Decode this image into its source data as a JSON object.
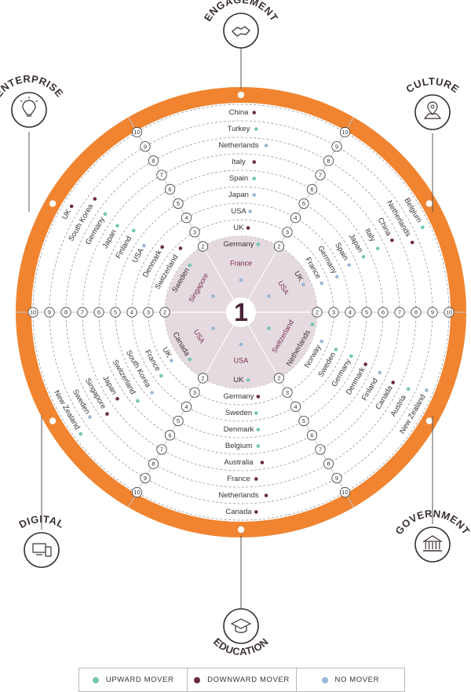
{
  "center_rank": "1",
  "rank_labels": [
    "2",
    "3",
    "4",
    "5",
    "6",
    "7",
    "8",
    "9",
    "10"
  ],
  "colors": {
    "ring": "#f08430",
    "hub": "#e4dadf",
    "upward": "#73c6b5",
    "downward": "#6b2b45",
    "none": "#9bb6d6"
  },
  "categories": [
    {
      "key": "engagement",
      "label": "ENGAGEMENT",
      "icon": "handshake-icon"
    },
    {
      "key": "culture",
      "label": "CULTURE",
      "icon": "map-pin-icon"
    },
    {
      "key": "government",
      "label": "GOVERNMENT",
      "icon": "bank-icon"
    },
    {
      "key": "education",
      "label": "EDUCATION",
      "icon": "graduation-cap-icon"
    },
    {
      "key": "digital",
      "label": "DIGITAL",
      "icon": "devices-icon"
    },
    {
      "key": "enterprise",
      "label": "ENTERPRISE",
      "icon": "lightbulb-icon"
    }
  ],
  "sectors": [
    {
      "key": "engagement",
      "hub": "France",
      "hub_mover": "none",
      "entries": [
        {
          "c": "Germany",
          "m": "up"
        },
        {
          "c": "UK",
          "m": "down"
        },
        {
          "c": "USA",
          "m": "none"
        },
        {
          "c": "Japan",
          "m": "none"
        },
        {
          "c": "Spain",
          "m": "up"
        },
        {
          "c": "Italy",
          "m": "down"
        },
        {
          "c": "Netherlands",
          "m": "none"
        },
        {
          "c": "Turkey",
          "m": "up"
        },
        {
          "c": "China",
          "m": "down"
        }
      ]
    },
    {
      "key": "culture",
      "hub": "USA",
      "hub_mover": "none",
      "entries": [
        {
          "c": "UK",
          "m": "none"
        },
        {
          "c": "France",
          "m": "none"
        },
        {
          "c": "Germany",
          "m": "none"
        },
        {
          "c": "Spain",
          "m": "none"
        },
        {
          "c": "Japan",
          "m": "up"
        },
        {
          "c": "Italy",
          "m": "up"
        },
        {
          "c": "China",
          "m": "down"
        },
        {
          "c": "Netherlands",
          "m": "down"
        },
        {
          "c": "Belgium",
          "m": "up"
        }
      ]
    },
    {
      "key": "government",
      "hub": "Switzerland",
      "hub_mover": "up",
      "entries": [
        {
          "c": "Netherlands",
          "m": "up"
        },
        {
          "c": "Norway",
          "m": "none"
        },
        {
          "c": "Sweden",
          "m": "up"
        },
        {
          "c": "Germany",
          "m": "up"
        },
        {
          "c": "Denmark",
          "m": "down"
        },
        {
          "c": "Finland",
          "m": "none"
        },
        {
          "c": "Canada",
          "m": "down"
        },
        {
          "c": "Austria",
          "m": "up"
        },
        {
          "c": "New Zealand",
          "m": "none"
        }
      ]
    },
    {
      "key": "education",
      "hub": "USA",
      "hub_mover": "none",
      "entries": [
        {
          "c": "UK",
          "m": "up"
        },
        {
          "c": "Germany",
          "m": "down"
        },
        {
          "c": "Sweden",
          "m": "up"
        },
        {
          "c": "Denmark",
          "m": "up"
        },
        {
          "c": "Belgium",
          "m": "up"
        },
        {
          "c": "Australia",
          "m": "down"
        },
        {
          "c": "France",
          "m": "down"
        },
        {
          "c": "Netherlands",
          "m": "down"
        },
        {
          "c": "Canada",
          "m": "down"
        }
      ]
    },
    {
      "key": "digital",
      "hub": "USA",
      "hub_mover": "none",
      "entries": [
        {
          "c": "Canada",
          "m": "up"
        },
        {
          "c": "UK",
          "m": "none"
        },
        {
          "c": "France",
          "m": "up"
        },
        {
          "c": "South Korea",
          "m": "none"
        },
        {
          "c": "Switzerland",
          "m": "up"
        },
        {
          "c": "Japan",
          "m": "down"
        },
        {
          "c": "Singapore",
          "m": "down"
        },
        {
          "c": "Sweden",
          "m": "none"
        },
        {
          "c": "New Zealand",
          "m": "up"
        }
      ]
    },
    {
      "key": "enterprise",
      "hub": "Singapore",
      "hub_mover": "none",
      "entries": [
        {
          "c": "Sweden",
          "m": "up"
        },
        {
          "c": "Switzerland",
          "m": "down"
        },
        {
          "c": "Denmark",
          "m": "down"
        },
        {
          "c": "USA",
          "m": "none"
        },
        {
          "c": "Finland",
          "m": "up"
        },
        {
          "c": "Japan",
          "m": "up"
        },
        {
          "c": "Germany",
          "m": "up"
        },
        {
          "c": "South Korea",
          "m": "down"
        },
        {
          "c": "UK",
          "m": "down"
        }
      ]
    }
  ],
  "legend": [
    {
      "label": "UPWARD MOVER",
      "mover": "up"
    },
    {
      "label": "DOWNWARD MOVER",
      "mover": "down"
    },
    {
      "label": "NO MOVER",
      "mover": "none"
    }
  ]
}
